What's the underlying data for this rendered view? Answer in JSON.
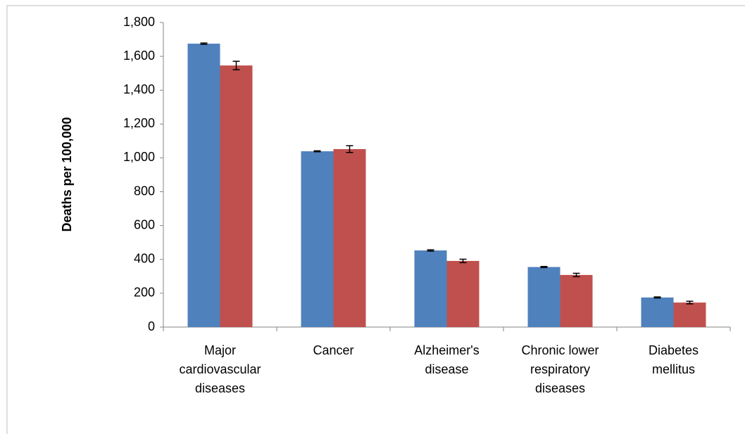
{
  "chart_data": {
    "type": "bar",
    "y_label": "Deaths per 100,000",
    "categories": [
      "Major cardiovascular diseases",
      "Cancer",
      "Alzheimer's disease",
      "Chronic lower respiratory diseases",
      "Diabetes mellitus"
    ],
    "series": [
      {
        "color": "#4f81bd",
        "values": [
          1675,
          1039,
          453,
          355,
          175
        ],
        "errors": [
          4,
          3,
          4,
          3,
          3
        ]
      },
      {
        "color": "#c0504d",
        "values": [
          1546,
          1052,
          391,
          308,
          145
        ],
        "errors": [
          25,
          20,
          10,
          10,
          8
        ]
      }
    ],
    "ylim": [
      0,
      1800
    ],
    "yticks": [
      0,
      200,
      400,
      600,
      800,
      {
        "value": 1000,
        "label": "1,000"
      },
      {
        "value": 1200,
        "label": "1,200"
      },
      {
        "value": 1400,
        "label": "1,400"
      },
      {
        "value": 1600,
        "label": "1,600"
      },
      {
        "value": 1800,
        "label": "1,800"
      }
    ]
  }
}
